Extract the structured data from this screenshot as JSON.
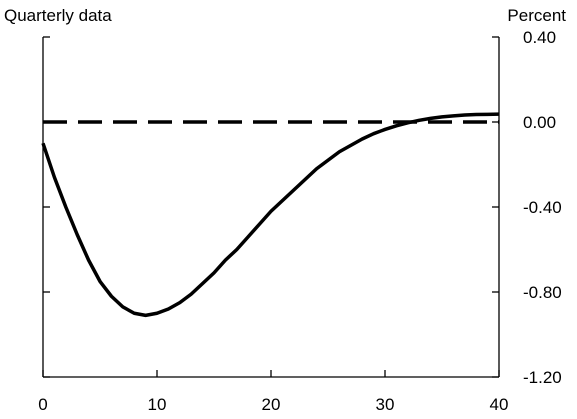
{
  "chart_data": {
    "type": "line",
    "left_caption": "Quarterly data",
    "right_caption": "Percent",
    "xlim": [
      0,
      40
    ],
    "ylim": [
      -1.2,
      0.4
    ],
    "x_ticks": [
      0,
      10,
      20,
      30,
      40
    ],
    "x_tick_labels": [
      "0",
      "10",
      "20",
      "30",
      "40"
    ],
    "y_ticks": [
      0.4,
      0.0,
      -0.4,
      -0.8,
      -1.2
    ],
    "y_tick_labels": [
      "0.40",
      "0.00",
      "-0.40",
      "-0.80",
      "-1.20"
    ],
    "y_axis_side": "right",
    "grid": false,
    "legend": "none",
    "series": [
      {
        "style": "solid",
        "color": "#000000",
        "x": [
          0,
          1,
          2,
          3,
          4,
          5,
          6,
          7,
          8,
          9,
          10,
          11,
          12,
          13,
          14,
          15,
          16,
          17,
          18,
          19,
          20,
          21,
          22,
          23,
          24,
          25,
          26,
          27,
          28,
          29,
          30,
          31,
          32,
          33,
          34,
          35,
          36,
          37,
          38,
          39,
          40
        ],
        "y": [
          -0.1,
          -0.26,
          -0.4,
          -0.53,
          -0.65,
          -0.75,
          -0.82,
          -0.87,
          -0.9,
          -0.91,
          -0.9,
          -0.88,
          -0.85,
          -0.81,
          -0.76,
          -0.71,
          -0.65,
          -0.6,
          -0.54,
          -0.48,
          -0.42,
          -0.37,
          -0.32,
          -0.27,
          -0.22,
          -0.18,
          -0.14,
          -0.11,
          -0.08,
          -0.055,
          -0.035,
          -0.018,
          -0.004,
          0.008,
          0.017,
          0.024,
          0.029,
          0.033,
          0.035,
          0.036,
          0.037
        ]
      },
      {
        "style": "dashed",
        "color": "#000000",
        "x": [
          0,
          40
        ],
        "y": [
          0,
          0
        ]
      }
    ]
  }
}
